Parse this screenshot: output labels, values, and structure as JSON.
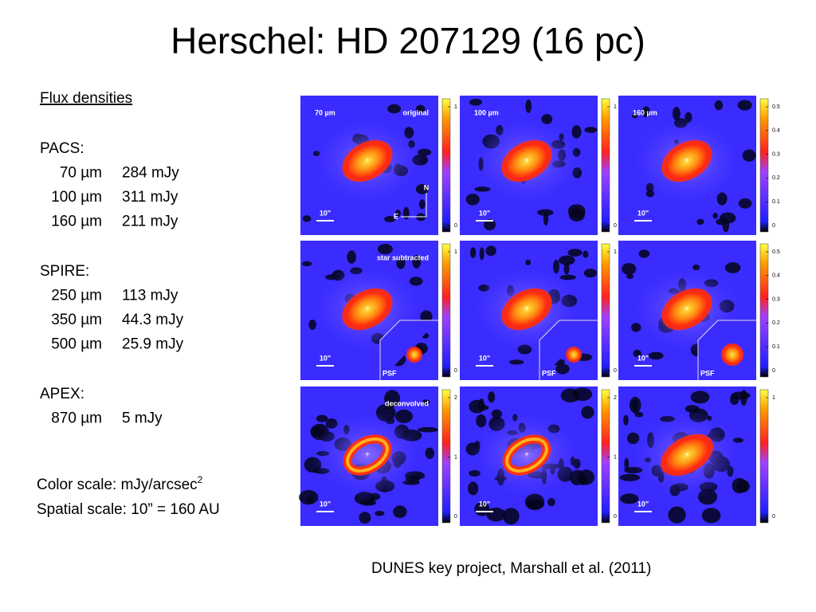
{
  "title": "Herschel: HD 207129 (16 pc)",
  "flux": {
    "heading": "Flux densities",
    "groups": [
      {
        "name": "PACS:",
        "rows": [
          {
            "band": "70 µm",
            "flux": "284 mJy"
          },
          {
            "band": "100 µm",
            "flux": "311 mJy"
          },
          {
            "band": "160 µm",
            "flux": "211 mJy"
          }
        ]
      },
      {
        "name": "SPIRE:",
        "rows": [
          {
            "band": "250 µm",
            "flux": "113 mJy"
          },
          {
            "band": "350 µm",
            "flux": "44.3 mJy",
            "color": "#ff0000"
          },
          {
            "band": "500 µm",
            "flux": "25.9 mJy",
            "color": "#ff0000"
          }
        ]
      },
      {
        "name": "APEX:",
        "rows": [
          {
            "band": "870 µm",
            "flux": "5 mJy"
          }
        ]
      }
    ]
  },
  "scales": {
    "color": "Color scale: mJy/arcsec",
    "color_sup": "2",
    "spatial": "Spatial scale: 10” = 160 AU"
  },
  "credit": "DUNES key project, Marshall et al. (2011)",
  "panels": [
    [
      {
        "label": "70 µm",
        "tag": "original",
        "scale_bar": "10\"",
        "compass": [
          "N",
          "E"
        ],
        "ticks": [
          1,
          0
        ]
      },
      {
        "label": "100 µm",
        "scale_bar": "10\"",
        "ticks": [
          1,
          0
        ]
      },
      {
        "label": "160 µm",
        "scale_bar": "10\"",
        "ticks": [
          0.5,
          0.4,
          0.3,
          0.2,
          0.1,
          0
        ]
      }
    ],
    [
      {
        "tag": "star subtracted",
        "scale_bar": "10\"",
        "psf": "PSF",
        "ticks": [
          1,
          0
        ]
      },
      {
        "scale_bar": "10\"",
        "psf": "PSF",
        "ticks": [
          1,
          0
        ]
      },
      {
        "scale_bar": "10\"",
        "psf": "PSF",
        "ticks": [
          0.5,
          0.4,
          0.3,
          0.2,
          0.1,
          0
        ]
      }
    ],
    [
      {
        "tag": "deconvolved",
        "scale_bar": "10\"",
        "ticks": [
          2,
          1,
          0
        ]
      },
      {
        "scale_bar": "10\"",
        "ticks": [
          2,
          1,
          0
        ]
      },
      {
        "scale_bar": "10\"",
        "ticks": [
          1,
          0
        ]
      }
    ]
  ]
}
